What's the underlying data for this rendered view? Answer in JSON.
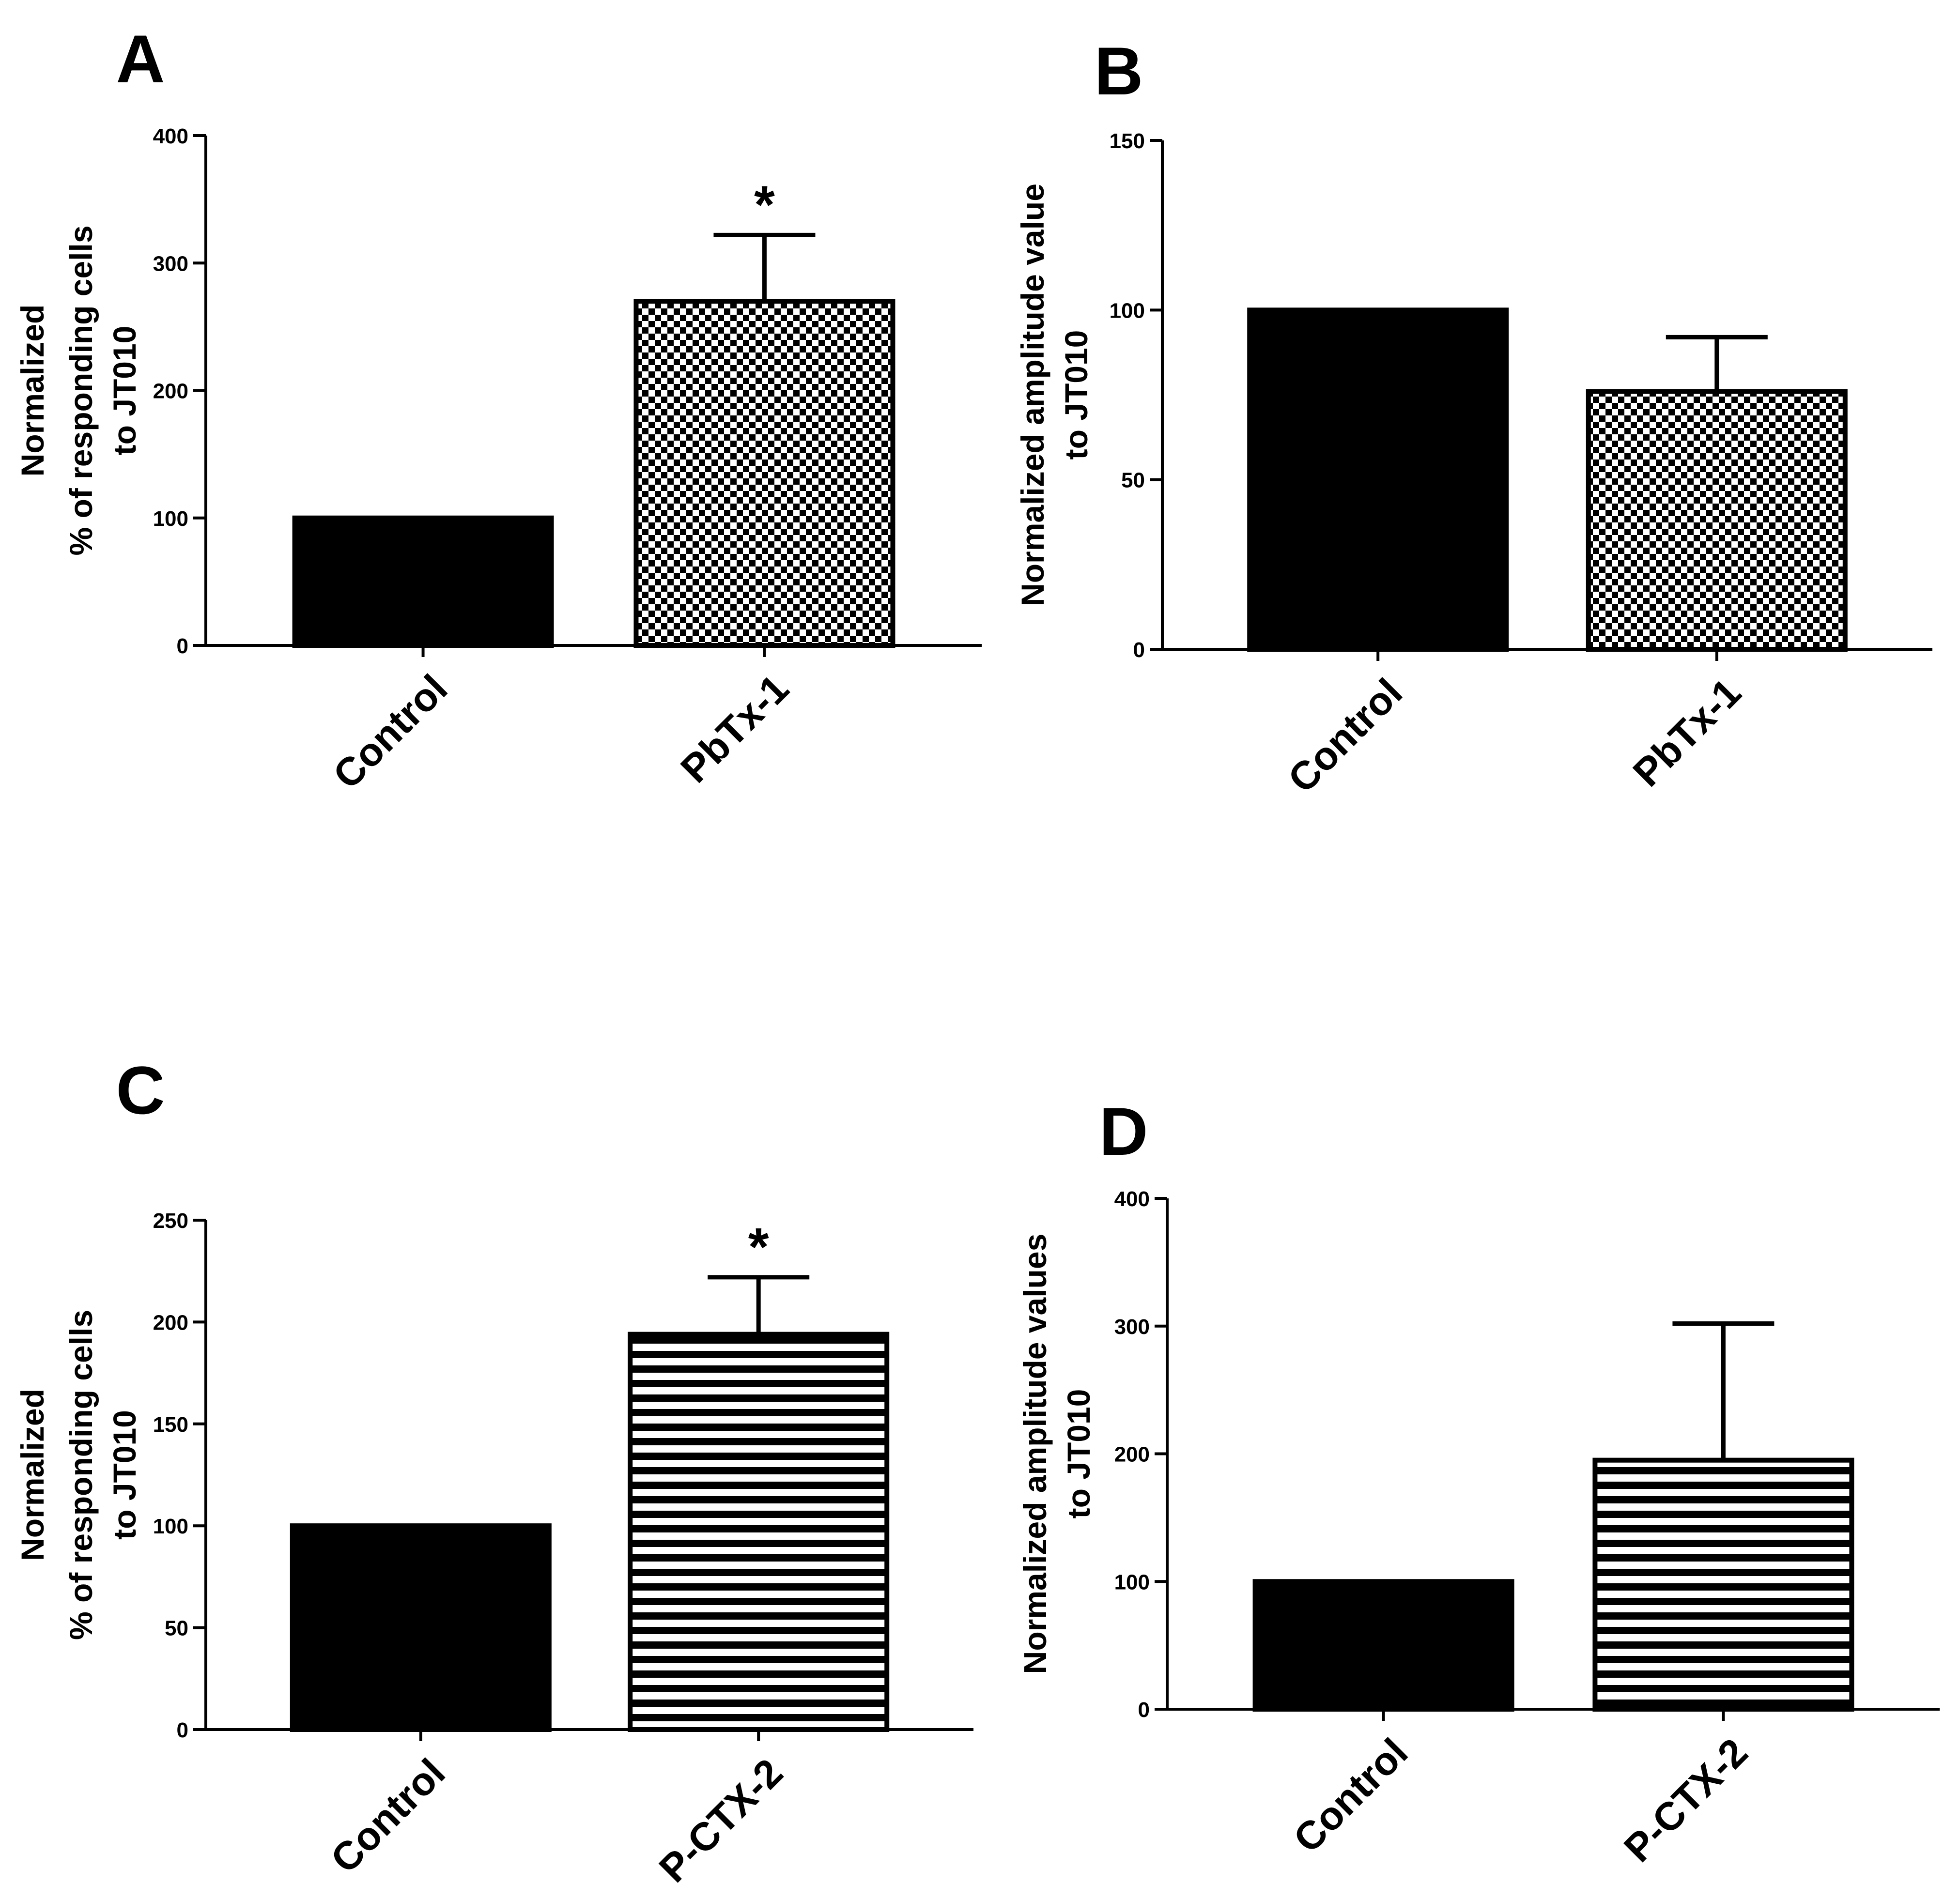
{
  "chart_data": [
    {
      "panel": "A",
      "type": "bar",
      "categories": [
        "Control",
        "PbTx-1"
      ],
      "values": [
        100,
        270
      ],
      "errors": [
        0,
        52
      ],
      "patterns": [
        "solid",
        "checker"
      ],
      "significance": [
        "",
        "*"
      ],
      "ylabel": [
        "Normalized",
        "% of responding cells",
        "to JT010"
      ],
      "ylim": [
        0,
        400
      ],
      "yticks": [
        0,
        100,
        200,
        300,
        400
      ]
    },
    {
      "panel": "B",
      "type": "bar",
      "categories": [
        "Control",
        "PbTx-1"
      ],
      "values": [
        100,
        76
      ],
      "errors": [
        0,
        16
      ],
      "patterns": [
        "solid",
        "checker"
      ],
      "significance": [
        "",
        ""
      ],
      "ylabel": [
        "Normalized amplitude value",
        "to JT010"
      ],
      "ylim": [
        0,
        150
      ],
      "yticks": [
        0,
        50,
        100,
        150
      ]
    },
    {
      "panel": "C",
      "type": "bar",
      "categories": [
        "Control",
        "P-CTX-2"
      ],
      "values": [
        100,
        194
      ],
      "errors": [
        0,
        28
      ],
      "patterns": [
        "solid",
        "hstripe"
      ],
      "significance": [
        "",
        "*"
      ],
      "ylabel": [
        "Normalized",
        "% of responding cells",
        "to JT010"
      ],
      "ylim": [
        0,
        250
      ],
      "yticks": [
        0,
        50,
        100,
        150,
        200,
        250
      ]
    },
    {
      "panel": "D",
      "type": "bar",
      "categories": [
        "Control",
        "P-CTX-2"
      ],
      "values": [
        100,
        195
      ],
      "errors": [
        0,
        107
      ],
      "patterns": [
        "solid",
        "hstripe"
      ],
      "significance": [
        "",
        ""
      ],
      "ylabel": [
        "Normalized amplitude values",
        "to JT010"
      ],
      "ylim": [
        0,
        400
      ],
      "yticks": [
        0,
        100,
        200,
        300,
        400
      ]
    }
  ]
}
